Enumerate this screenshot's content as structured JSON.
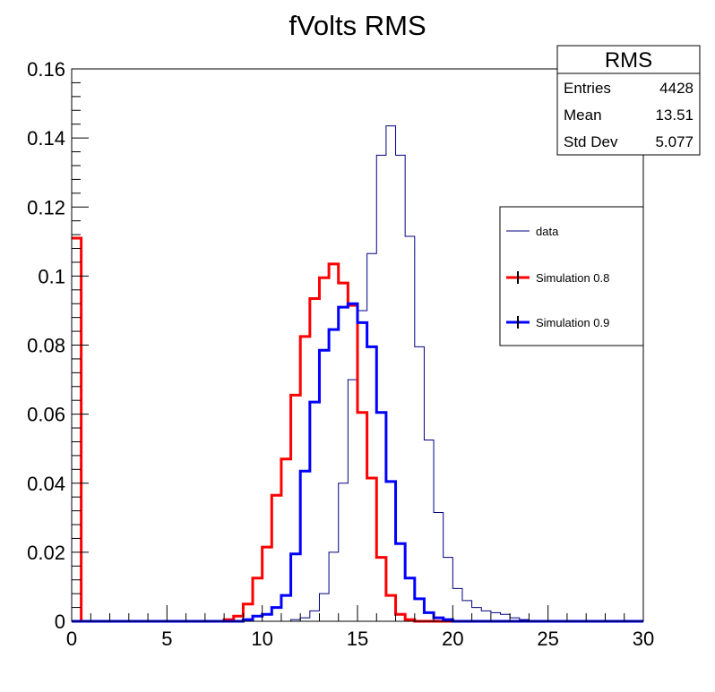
{
  "chart_data": {
    "type": "line",
    "title": "fVolts RMS",
    "xlabel": "",
    "ylabel": "",
    "xlim": [
      0,
      30
    ],
    "ylim": [
      0,
      0.16
    ],
    "x_ticks": [
      0,
      5,
      10,
      15,
      20,
      25,
      30
    ],
    "x_tick_labels": [
      "0",
      "5",
      "10",
      "15",
      "20",
      "25",
      "30"
    ],
    "y_ticks": [
      0,
      0.02,
      0.04,
      0.06,
      0.08,
      0.1,
      0.12,
      0.14,
      0.16
    ],
    "y_tick_labels": [
      "0",
      "0.02",
      "0.04",
      "0.06",
      "0.08",
      "0.1",
      "0.12",
      "0.14",
      "0.16"
    ],
    "grid": false,
    "bin_width": 0.5,
    "bin_edges_start": 0,
    "series": [
      {
        "name": "data",
        "color": "#000080",
        "style": "thin-step",
        "values": [
          0,
          0,
          0,
          0,
          0,
          0,
          0,
          0,
          0,
          0,
          0,
          0,
          0,
          0,
          0,
          0,
          0,
          0,
          0,
          0,
          0,
          0,
          0,
          0.0005,
          0.001,
          0.003,
          0.008,
          0.02,
          0.04,
          0.07,
          0.09,
          0.1065,
          0.135,
          0.1435,
          0.135,
          0.1115,
          0.0795,
          0.0525,
          0.0315,
          0.0185,
          0.0095,
          0.006,
          0.004,
          0.003,
          0.0025,
          0.002,
          0.001,
          0.0005,
          0,
          0,
          0,
          0,
          0,
          0,
          0,
          0,
          0,
          0,
          0,
          0
        ]
      },
      {
        "name": "Simulation 0.8",
        "color": "#ff0000",
        "style": "thick-step",
        "values": [
          0.111,
          0,
          0,
          0,
          0,
          0,
          0,
          0,
          0,
          0,
          0,
          0,
          0,
          0,
          0,
          0,
          0.0005,
          0.0015,
          0.005,
          0.0125,
          0.0215,
          0.0365,
          0.047,
          0.0655,
          0.0825,
          0.0935,
          0.0995,
          0.1035,
          0.098,
          0.0915,
          0.0605,
          0.0415,
          0.0185,
          0.0075,
          0.002,
          0.0005,
          0,
          0,
          0,
          0,
          0,
          0,
          0,
          0,
          0,
          0,
          0,
          0,
          0,
          0,
          0,
          0,
          0,
          0,
          0,
          0,
          0,
          0,
          0,
          0
        ]
      },
      {
        "name": "Simulation 0.9",
        "color": "#0000ff",
        "style": "thick-step",
        "values": [
          0,
          0,
          0,
          0,
          0,
          0,
          0,
          0,
          0,
          0,
          0,
          0,
          0,
          0,
          0,
          0,
          0,
          0,
          0.0005,
          0.0015,
          0.002,
          0.004,
          0.0075,
          0.0195,
          0.0435,
          0.0635,
          0.0785,
          0.0845,
          0.091,
          0.092,
          0.0865,
          0.0795,
          0.0605,
          0.0405,
          0.0225,
          0.0125,
          0.0065,
          0.0025,
          0.001,
          0.0005,
          0,
          0,
          0,
          0,
          0,
          0,
          0,
          0,
          0,
          0,
          0,
          0,
          0,
          0,
          0,
          0,
          0,
          0,
          0,
          0
        ]
      }
    ],
    "legend": {
      "placement": "right",
      "entries": [
        "data",
        "Simulation 0.8",
        "Simulation 0.9"
      ]
    },
    "stats_box": {
      "title": "RMS",
      "rows": [
        {
          "label": "Entries",
          "value": "4428"
        },
        {
          "label": "Mean",
          "value": "13.51"
        },
        {
          "label": "Std Dev",
          "value": "5.077"
        }
      ]
    }
  }
}
